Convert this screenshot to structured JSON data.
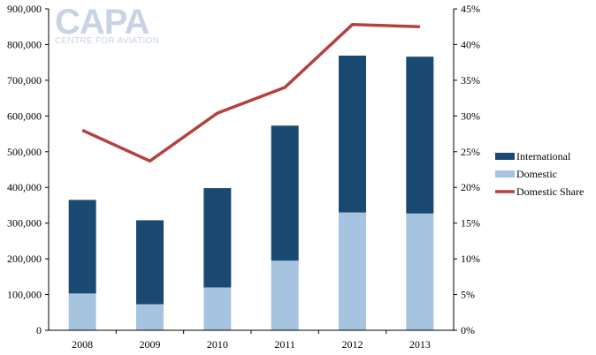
{
  "logo": {
    "text": "CAPA",
    "subtitle": "CENTRE FOR AVIATION"
  },
  "colors": {
    "international": "#1a4a72",
    "domestic": "#a6c3e0",
    "share": "#b5413d",
    "axis": "#000000",
    "logo": "#c9d3e4"
  },
  "chart_data": {
    "type": "bar",
    "stacked": true,
    "title": "",
    "xlabel": "",
    "ylabel": "",
    "categories": [
      "2008",
      "2009",
      "2010",
      "2011",
      "2012",
      "2013"
    ],
    "series": [
      {
        "name": "Domestic",
        "axis": "left",
        "values": [
          103000,
          73000,
          120000,
          195000,
          330000,
          327000
        ]
      },
      {
        "name": "International",
        "axis": "left",
        "values": [
          262000,
          235000,
          278000,
          378000,
          439000,
          439000
        ]
      },
      {
        "name": "Domestic Share",
        "axis": "right",
        "type": "line",
        "values": [
          28.0,
          23.7,
          30.4,
          34.0,
          42.8,
          42.5
        ]
      }
    ],
    "y_left": {
      "min": 0,
      "max": 900000,
      "ticks": [
        "0",
        "100,000",
        "200,000",
        "300,000",
        "400,000",
        "500,000",
        "600,000",
        "700,000",
        "800,000",
        "900,000"
      ]
    },
    "y_right": {
      "min": 0,
      "max": 45,
      "ticks": [
        "0%",
        "5%",
        "10%",
        "15%",
        "20%",
        "25%",
        "30%",
        "35%",
        "40%",
        "45%"
      ]
    },
    "grid": false,
    "legend": {
      "position": "right",
      "entries": [
        "International",
        "Domestic",
        "Domestic Share"
      ]
    }
  }
}
